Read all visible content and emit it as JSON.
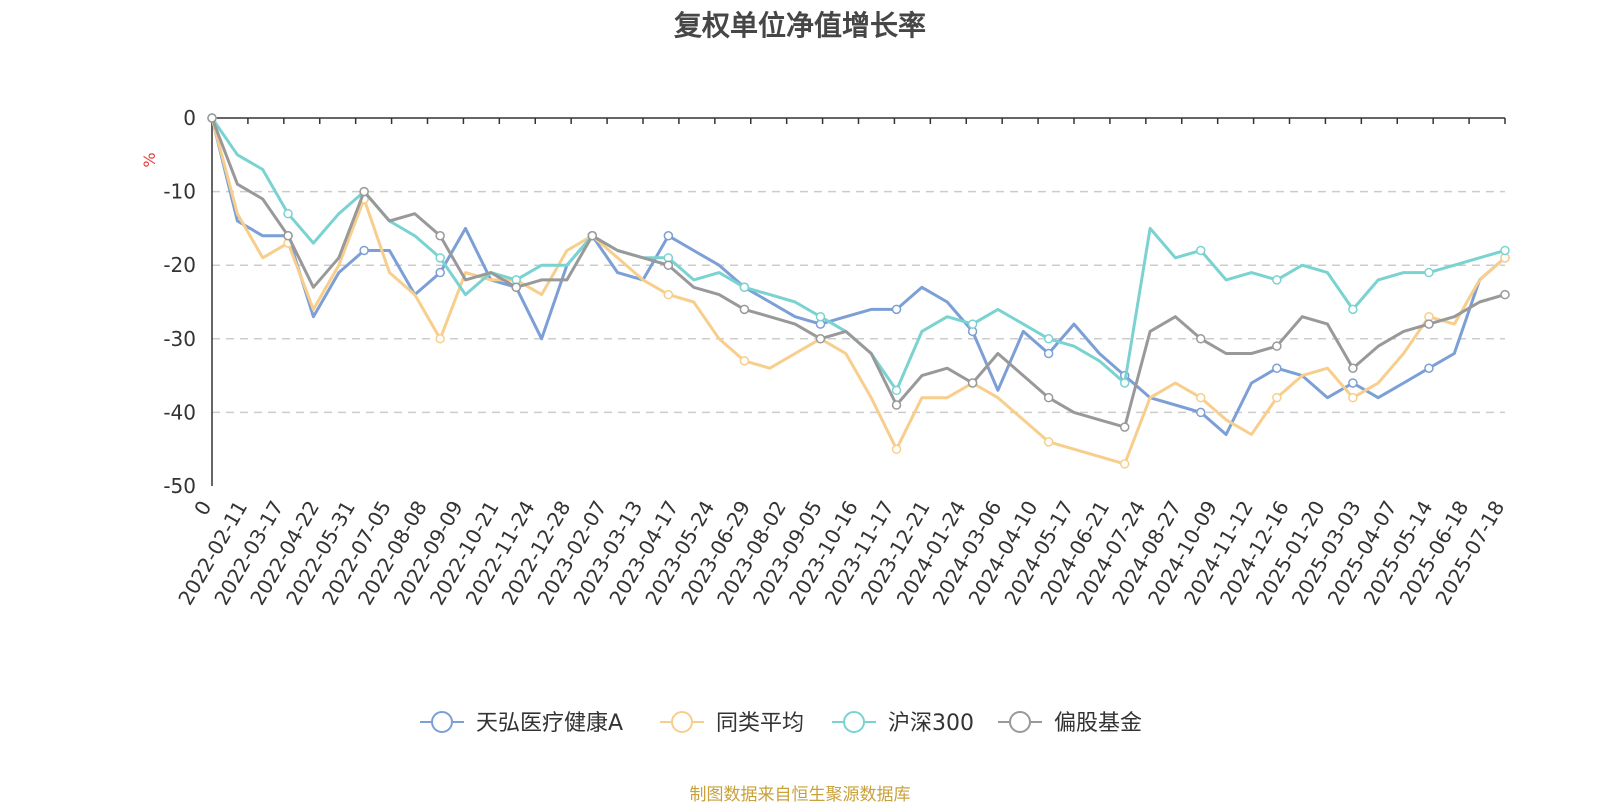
{
  "chart_data": {
    "type": "line",
    "title": "复权单位净值增长率",
    "y_unit": "%",
    "ylim": [
      -50,
      0
    ],
    "yticks": [
      0,
      -10,
      -20,
      -30,
      -40,
      -50
    ],
    "grid": "horizontal dashed",
    "legend_position": "bottom",
    "x_tick_labels": [
      "0",
      "2022-02-11",
      "2022-03-17",
      "2022-04-22",
      "2022-05-31",
      "2022-07-05",
      "2022-08-08",
      "2022-09-09",
      "2022-10-21",
      "2022-11-24",
      "2022-12-28",
      "2023-02-07",
      "2023-03-13",
      "2023-04-17",
      "2023-05-24",
      "2023-06-29",
      "2023-08-02",
      "2023-09-05",
      "2023-10-16",
      "2023-11-17",
      "2023-12-21",
      "2024-01-24",
      "2024-03-06",
      "2024-04-10",
      "2024-05-17",
      "2024-06-21",
      "2024-07-24",
      "2024-08-27",
      "2024-10-09",
      "2024-11-12",
      "2024-12-16",
      "2025-01-20",
      "2025-03-03",
      "2025-04-07",
      "2025-05-14",
      "2025-06-18",
      "2025-07-18"
    ],
    "series": [
      {
        "name": "天弘医疗健康A",
        "color": "#7b9fd6",
        "values": [
          0,
          -14,
          -16,
          -16,
          -27,
          -21,
          -18,
          -18,
          -24,
          -21,
          -15,
          -22,
          -23,
          -30,
          -20,
          -16,
          -21,
          -22,
          -16,
          -18,
          -20,
          -23,
          -25,
          -27,
          -28,
          -27,
          -26,
          -26,
          -23,
          -25,
          -29,
          -37,
          -29,
          -32,
          -28,
          -32,
          -35,
          -38,
          -39,
          -40,
          -43,
          -36,
          -34,
          -35,
          -38,
          -36,
          -38,
          -36,
          -34,
          -32,
          -22,
          -19
        ]
      },
      {
        "name": "同类平均",
        "color": "#f7ce8c",
        "values": [
          0,
          -13,
          -19,
          -17,
          -26,
          -20,
          -11,
          -21,
          -24,
          -30,
          -21,
          -22,
          -22,
          -24,
          -18,
          -16,
          -19,
          -22,
          -24,
          -25,
          -30,
          -33,
          -34,
          -32,
          -30,
          -32,
          -38,
          -45,
          -38,
          -38,
          -36,
          -38,
          -41,
          -44,
          -45,
          -46,
          -47,
          -38,
          -36,
          -38,
          -41,
          -43,
          -38,
          -35,
          -34,
          -38,
          -36,
          -32,
          -27,
          -28,
          -22,
          -19
        ]
      },
      {
        "name": "沪深300",
        "color": "#7ad3d1",
        "values": [
          0,
          -5,
          -7,
          -13,
          -17,
          -13,
          -10,
          -14,
          -16,
          -19,
          -24,
          -21,
          -22,
          -20,
          -20,
          -16,
          -18,
          -19,
          -19,
          -22,
          -21,
          -23,
          -24,
          -25,
          -27,
          -29,
          -32,
          -37,
          -29,
          -27,
          -28,
          -26,
          -28,
          -30,
          -31,
          -33,
          -36,
          -15,
          -19,
          -18,
          -22,
          -21,
          -22,
          -20,
          -21,
          -26,
          -22,
          -21,
          -21,
          -20,
          -19,
          -18
        ]
      },
      {
        "name": "偏股基金",
        "color": "#999999",
        "values": [
          0,
          -9,
          -11,
          -16,
          -23,
          -19,
          -10,
          -14,
          -13,
          -16,
          -22,
          -21,
          -23,
          -22,
          -22,
          -16,
          -18,
          -19,
          -20,
          -23,
          -24,
          -26,
          -27,
          -28,
          -30,
          -29,
          -32,
          -39,
          -35,
          -34,
          -36,
          -32,
          -35,
          -38,
          -40,
          -41,
          -42,
          -29,
          -27,
          -30,
          -32,
          -32,
          -31,
          -27,
          -28,
          -34,
          -31,
          -29,
          -28,
          -27,
          -25,
          -24
        ]
      }
    ]
  },
  "source_note": "制图数据来自恒生聚源数据库"
}
